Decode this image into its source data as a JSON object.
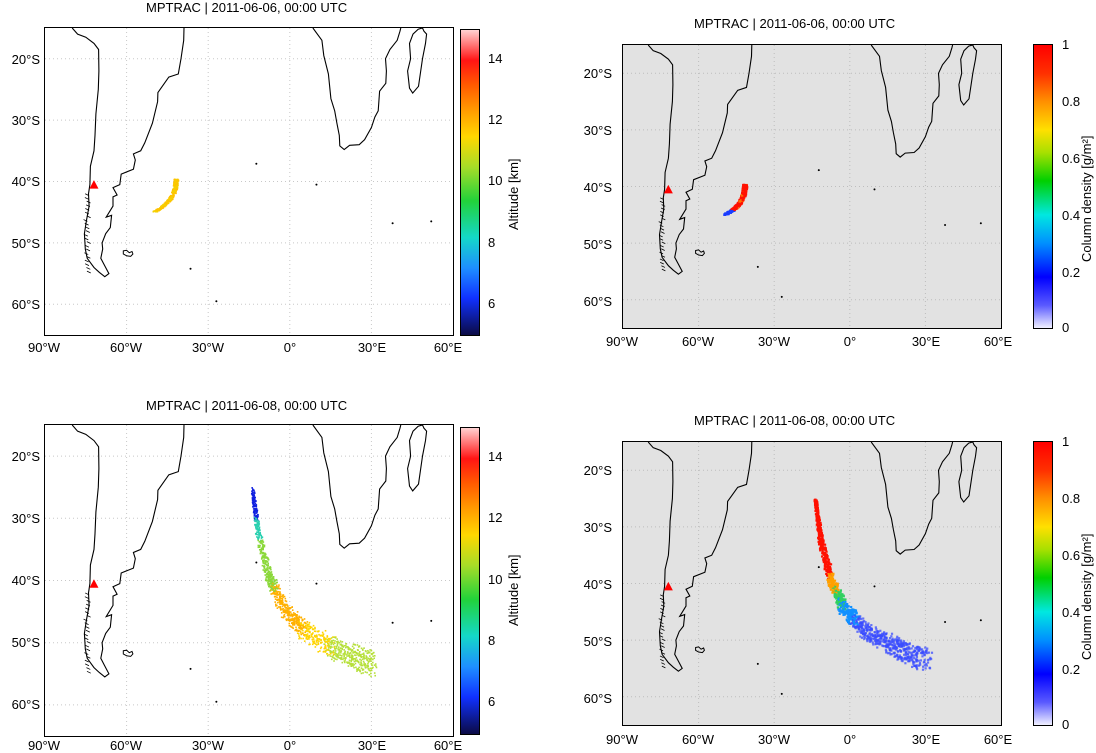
{
  "panels": [
    {
      "id": "p1",
      "title": "MPTRAC | 2011-06-06, 00:00 UTC",
      "kind": "altitude",
      "colorbar_title": "Altitude [km]",
      "colorbar_ticks": [
        "14",
        "12",
        "10",
        "8",
        "6"
      ],
      "x_ticks": [
        "90°W",
        "60°W",
        "30°W",
        "0°",
        "30°E",
        "60°E"
      ],
      "y_ticks": [
        "20°S",
        "30°S",
        "40°S",
        "50°S",
        "60°S"
      ]
    },
    {
      "id": "p2",
      "title": "MPTRAC | 2011-06-06, 00:00 UTC",
      "kind": "density",
      "colorbar_title": "Column density [g/m²]",
      "colorbar_ticks": [
        "1",
        "0.8",
        "0.6",
        "0.4",
        "0.2",
        "0"
      ],
      "x_ticks": [
        "90°W",
        "60°W",
        "30°W",
        "0°",
        "30°E",
        "60°E"
      ],
      "y_ticks": [
        "20°S",
        "30°S",
        "40°S",
        "50°S",
        "60°S"
      ]
    },
    {
      "id": "p3",
      "title": "MPTRAC | 2011-06-08, 00:00 UTC",
      "kind": "altitude",
      "colorbar_title": "Altitude [km]",
      "colorbar_ticks": [
        "14",
        "12",
        "10",
        "8",
        "6"
      ],
      "x_ticks": [
        "90°W",
        "60°W",
        "30°W",
        "0°",
        "30°E",
        "60°E"
      ],
      "y_ticks": [
        "20°S",
        "30°S",
        "40°S",
        "50°S",
        "60°S"
      ]
    },
    {
      "id": "p4",
      "title": "MPTRAC | 2011-06-08, 00:00 UTC",
      "kind": "density",
      "colorbar_title": "Column density [g/m²]",
      "colorbar_ticks": [
        "1",
        "0.8",
        "0.6",
        "0.4",
        "0.2",
        "0"
      ],
      "x_ticks": [
        "90°W",
        "60°W",
        "30°W",
        "0°",
        "30°E",
        "60°E"
      ],
      "y_ticks": [
        "20°S",
        "30°S",
        "40°S",
        "50°S",
        "60°S"
      ]
    }
  ],
  "map_extent": {
    "lon": [
      -90,
      60
    ],
    "lat": [
      -65,
      -15
    ]
  },
  "volcano_marker": {
    "lon": -72,
    "lat": -40.6,
    "color": "#ff0000",
    "symbol": "triangle"
  },
  "plumes": {
    "p1": {
      "center_track": [
        [
          -42,
          -39.5
        ],
        [
          -42.5,
          -42
        ],
        [
          -45,
          -44
        ],
        [
          -50,
          -45
        ]
      ],
      "altitude_km": 10.5
    },
    "p3": {
      "center_track": [
        [
          -14,
          -25
        ],
        [
          -12,
          -32
        ],
        [
          -8,
          -39
        ],
        [
          -3,
          -44
        ],
        [
          5,
          -48
        ],
        [
          17,
          -51
        ],
        [
          30,
          -53.5
        ]
      ],
      "altitude_km_start": 6,
      "altitude_km_end": 9
    }
  },
  "colors": {
    "ocean_density": "#e2e2e2",
    "grid": "#c8c8c8",
    "marker": "#ff0000"
  }
}
